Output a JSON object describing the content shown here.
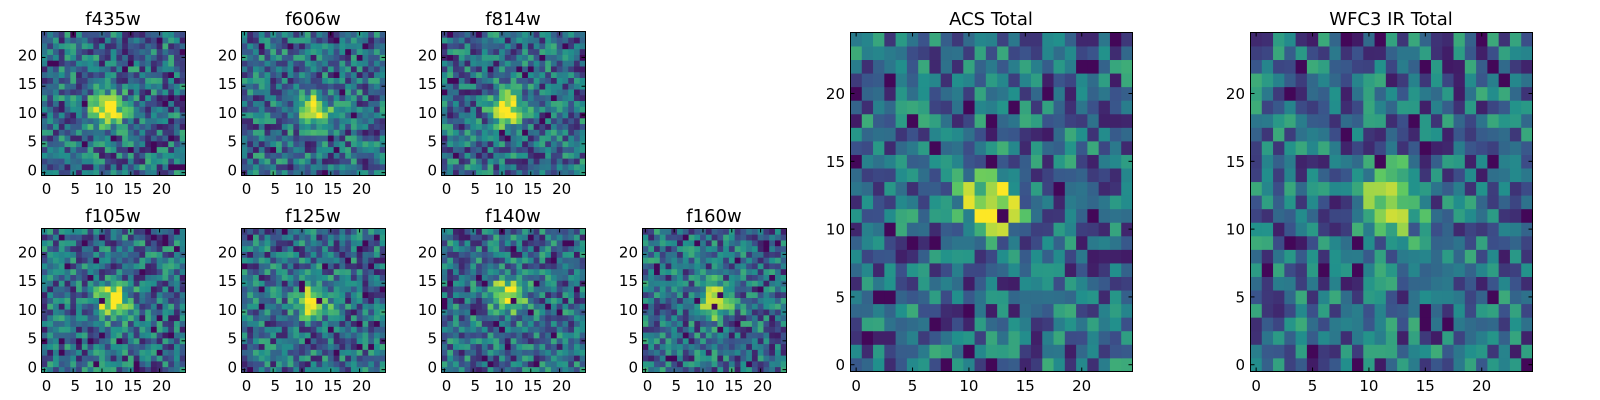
{
  "figure": {
    "panels": [
      {
        "title": "f435w",
        "xticks": [
          "0",
          "5",
          "10",
          "15",
          "20"
        ],
        "yticks": [
          "0",
          "5",
          "10",
          "15",
          "20"
        ]
      },
      {
        "title": "f606w",
        "xticks": [
          "0",
          "5",
          "10",
          "15",
          "20"
        ],
        "yticks": [
          "0",
          "5",
          "10",
          "15",
          "20"
        ]
      },
      {
        "title": "f814w",
        "xticks": [
          "0",
          "5",
          "10",
          "15",
          "20"
        ],
        "yticks": [
          "0",
          "5",
          "10",
          "15",
          "20"
        ]
      },
      {
        "title": "f105w",
        "xticks": [
          "0",
          "5",
          "10",
          "15",
          "20"
        ],
        "yticks": [
          "0",
          "5",
          "10",
          "15",
          "20"
        ]
      },
      {
        "title": "f125w",
        "xticks": [
          "0",
          "5",
          "10",
          "15",
          "20"
        ],
        "yticks": [
          "0",
          "5",
          "10",
          "15",
          "20"
        ]
      },
      {
        "title": "f140w",
        "xticks": [
          "0",
          "5",
          "10",
          "15",
          "20"
        ],
        "yticks": [
          "0",
          "5",
          "10",
          "15",
          "20"
        ]
      },
      {
        "title": "f160w",
        "xticks": [
          "0",
          "5",
          "10",
          "15",
          "20"
        ],
        "yticks": [
          "0",
          "5",
          "10",
          "15",
          "20"
        ]
      },
      {
        "title": "ACS Total",
        "xticks": [
          "0",
          "5",
          "10",
          "15",
          "20"
        ],
        "yticks": [
          "0",
          "5",
          "10",
          "15",
          "20"
        ]
      },
      {
        "title": "WFC3 IR Total",
        "xticks": [
          "0",
          "5",
          "10",
          "15",
          "20"
        ],
        "yticks": [
          "0",
          "5",
          "10",
          "15",
          "20"
        ]
      }
    ]
  },
  "chart_data": [
    {
      "type": "heatmap",
      "title": "f435w",
      "xlim": [
        0,
        25
      ],
      "ylim": [
        0,
        25
      ],
      "colormap": "viridis",
      "grid": false,
      "peak_center": [
        11,
        11
      ]
    },
    {
      "type": "heatmap",
      "title": "f606w",
      "xlim": [
        0,
        25
      ],
      "ylim": [
        0,
        25
      ],
      "colormap": "viridis",
      "grid": false,
      "peak_center": [
        12,
        11
      ]
    },
    {
      "type": "heatmap",
      "title": "f814w",
      "xlim": [
        0,
        25
      ],
      "ylim": [
        0,
        25
      ],
      "colormap": "viridis",
      "grid": false,
      "peak_center": [
        11,
        11
      ]
    },
    {
      "type": "heatmap",
      "title": "f105w",
      "xlim": [
        0,
        25
      ],
      "ylim": [
        0,
        25
      ],
      "colormap": "viridis",
      "grid": false,
      "peak_center": [
        12,
        12
      ]
    },
    {
      "type": "heatmap",
      "title": "f125w",
      "xlim": [
        0,
        25
      ],
      "ylim": [
        0,
        25
      ],
      "colormap": "viridis",
      "grid": false,
      "peak_center": [
        12,
        12
      ]
    },
    {
      "type": "heatmap",
      "title": "f140w",
      "xlim": [
        0,
        25
      ],
      "ylim": [
        0,
        25
      ],
      "colormap": "viridis",
      "grid": false,
      "peak_center": [
        11,
        13
      ]
    },
    {
      "type": "heatmap",
      "title": "f160w",
      "xlim": [
        0,
        25
      ],
      "ylim": [
        0,
        25
      ],
      "colormap": "viridis",
      "grid": false,
      "peak_center": [
        12,
        12
      ]
    },
    {
      "type": "heatmap",
      "title": "ACS Total",
      "xlim": [
        0,
        25
      ],
      "ylim": [
        0,
        25
      ],
      "colormap": "viridis",
      "grid": false,
      "peak_center": [
        12,
        12
      ]
    },
    {
      "type": "heatmap",
      "title": "WFC3 IR Total",
      "xlim": [
        0,
        25
      ],
      "ylim": [
        0,
        25
      ],
      "colormap": "viridis",
      "grid": false,
      "peak_center": [
        12,
        12
      ]
    }
  ]
}
